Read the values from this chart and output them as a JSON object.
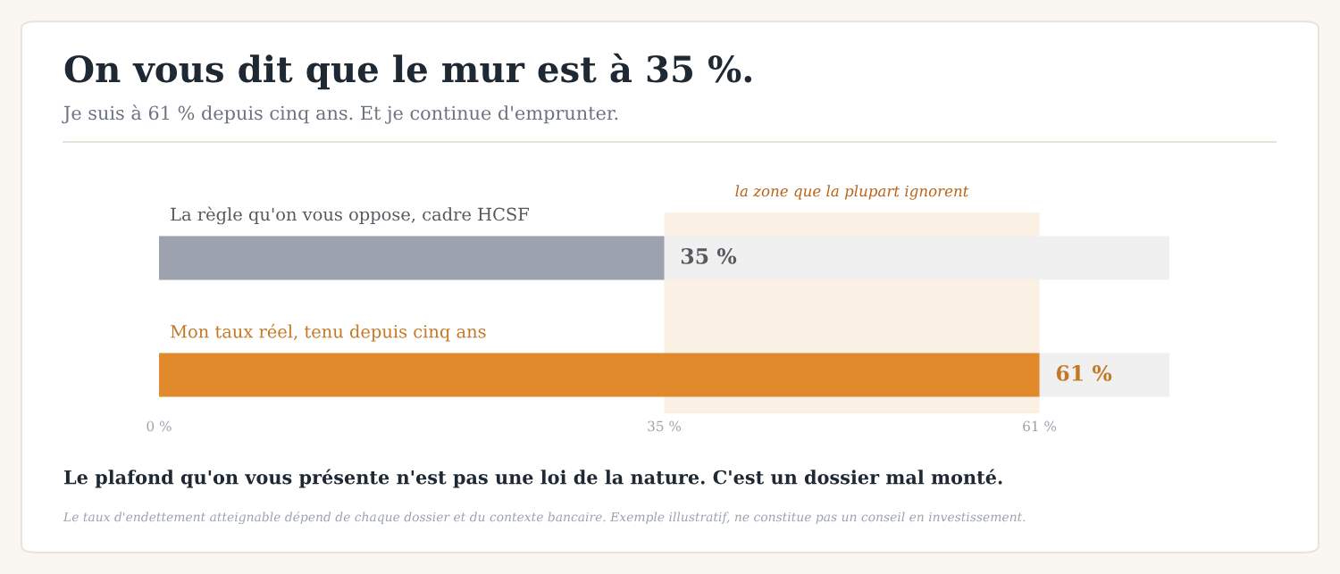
{
  "chart_data": {
    "type": "bar",
    "orientation": "horizontal",
    "title": "On vous dit que le mur est à 35 %.",
    "subtitle": "Je suis à 61 % depuis cinq ans. Et je continue d'emprunter.",
    "categories": [
      "La règle qu'on vous oppose, cadre HCSF",
      "Mon taux réel, tenu depuis cinq ans"
    ],
    "values": [
      35,
      61
    ],
    "colors": [
      "#9ca3af",
      "#e08a2c"
    ],
    "value_labels": [
      "35 %",
      "61 %"
    ],
    "xlim": [
      0,
      70
    ],
    "xticks": [
      {
        "value": 0,
        "label": "0 %"
      },
      {
        "value": 35,
        "label": "35 %"
      },
      {
        "value": 61,
        "label": "61 %"
      }
    ],
    "bands": [
      {
        "axis": "x",
        "from": 35,
        "to": 61,
        "label": "la zone que la plupart ignorent",
        "color": "#faf1e4"
      }
    ],
    "grid": false,
    "annotations": [
      "Le plafond qu'on vous présente n'est pas une loi de la nature. C'est un dossier mal monté.",
      "Le taux d'endettement atteignable dépend de chaque dossier et du contexte bancaire. Exemple illustratif, ne constitue pas un conseil en investissement."
    ]
  }
}
